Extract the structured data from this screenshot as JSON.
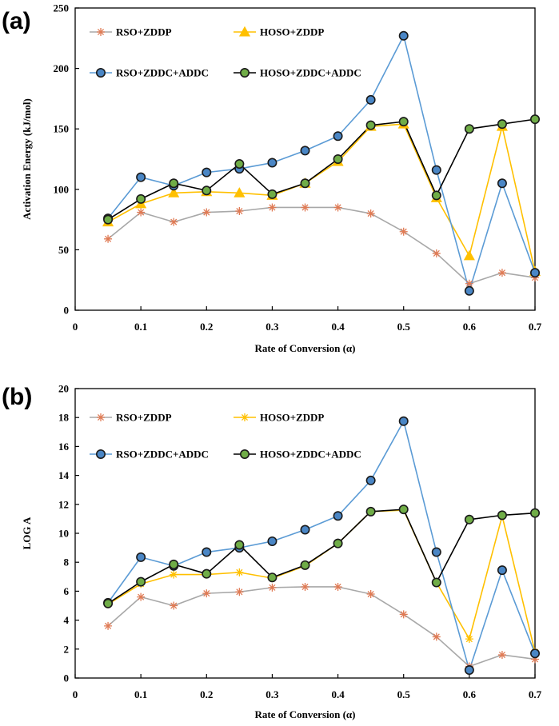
{
  "chart_data": [
    {
      "panel_label": "(a)",
      "type": "line",
      "ylabel": "Activation Energy (kJ/mol)",
      "xlabel": "Rate of Conversion (α)",
      "xlim": [
        0,
        0.7
      ],
      "ylim": [
        0,
        250
      ],
      "xticks": [
        0,
        0.1,
        0.2,
        0.3,
        0.4,
        0.5,
        0.6,
        0.7
      ],
      "xtick_labels": [
        "0",
        "0.1",
        "0.2",
        "0.3",
        "0.4",
        "0.5",
        "0.6",
        "0.7"
      ],
      "yticks": [
        0,
        50,
        100,
        150,
        200,
        250
      ],
      "ytick_labels": [
        "0",
        "50",
        "100",
        "150",
        "200",
        "250"
      ],
      "x": [
        0.05,
        0.1,
        0.15,
        0.2,
        0.25,
        0.3,
        0.35,
        0.4,
        0.45,
        0.5,
        0.55,
        0.6,
        0.65,
        0.7
      ],
      "series": [
        {
          "name": "RSO+ZDDP",
          "color": "#a8a8a8",
          "marker": "asterisk",
          "marker_color": "#e07b55",
          "values": [
            59,
            81,
            73,
            81,
            82,
            85,
            85,
            85,
            80,
            65,
            47,
            22,
            31,
            27
          ]
        },
        {
          "name": "HOSO+ZDDP",
          "color": "#ffc000",
          "marker": "triangle",
          "marker_color": "#ffc000",
          "values": [
            73,
            88,
            97,
            98,
            97,
            95,
            105,
            123,
            152,
            154,
            93,
            45,
            152,
            32
          ]
        },
        {
          "name": "RSO+ZDDC+ADDC",
          "color": "#5b9bd5",
          "marker": "circle",
          "marker_color": "#4a86c5",
          "values": [
            76,
            110,
            103,
            114,
            117,
            122,
            132,
            144,
            174,
            227,
            116,
            16,
            105,
            31
          ]
        },
        {
          "name": "HOSO+ZDDC+ADDC",
          "color": "#000000",
          "marker": "circle",
          "marker_color": "#70ad47",
          "values": [
            75,
            92,
            105,
            99,
            121,
            96,
            105,
            125,
            153,
            156,
            95,
            150,
            154,
            158
          ]
        }
      ]
    },
    {
      "panel_label": "(b)",
      "type": "line",
      "ylabel": "LOG A",
      "xlabel": "Rate of Conversion (α)",
      "xlim": [
        0,
        0.7
      ],
      "ylim": [
        0,
        20
      ],
      "xticks": [
        0,
        0.1,
        0.2,
        0.3,
        0.4,
        0.5,
        0.6,
        0.7
      ],
      "xtick_labels": [
        "0",
        "0.1",
        "0.2",
        "0.3",
        "0.4",
        "0.5",
        "0.6",
        "0.7"
      ],
      "yticks": [
        0,
        2,
        4,
        6,
        8,
        10,
        12,
        14,
        16,
        18,
        20
      ],
      "ytick_labels": [
        "0",
        "2",
        "4",
        "6",
        "8",
        "10",
        "12",
        "14",
        "16",
        "18",
        "20"
      ],
      "x": [
        0.05,
        0.1,
        0.15,
        0.2,
        0.25,
        0.3,
        0.35,
        0.4,
        0.45,
        0.5,
        0.55,
        0.6,
        0.65,
        0.7
      ],
      "series": [
        {
          "name": "RSO+ZDDP",
          "color": "#a8a8a8",
          "marker": "asterisk",
          "marker_color": "#e07b55",
          "values": [
            3.6,
            5.6,
            5.0,
            5.85,
            5.95,
            6.25,
            6.3,
            6.3,
            5.8,
            4.4,
            2.85,
            0.8,
            1.6,
            1.3
          ]
        },
        {
          "name": "HOSO+ZDDP",
          "color": "#ffc000",
          "marker": "asterisk",
          "marker_color": "#ffc000",
          "values": [
            5.1,
            6.5,
            7.15,
            7.15,
            7.3,
            6.9,
            7.75,
            9.3,
            11.5,
            11.6,
            6.6,
            2.7,
            11.2,
            1.8
          ]
        },
        {
          "name": "RSO+ZDDC+ADDC",
          "color": "#5b9bd5",
          "marker": "circle",
          "marker_color": "#4a86c5",
          "values": [
            5.2,
            8.35,
            7.75,
            8.7,
            9.0,
            9.45,
            10.25,
            11.2,
            13.65,
            17.75,
            8.7,
            0.55,
            7.45,
            1.7
          ]
        },
        {
          "name": "HOSO+ZDDC+ADDC",
          "color": "#000000",
          "marker": "circle",
          "marker_color": "#70ad47",
          "values": [
            5.15,
            6.65,
            7.85,
            7.2,
            9.2,
            6.95,
            7.8,
            9.3,
            11.5,
            11.65,
            6.6,
            10.95,
            11.25,
            11.4
          ]
        }
      ]
    }
  ]
}
